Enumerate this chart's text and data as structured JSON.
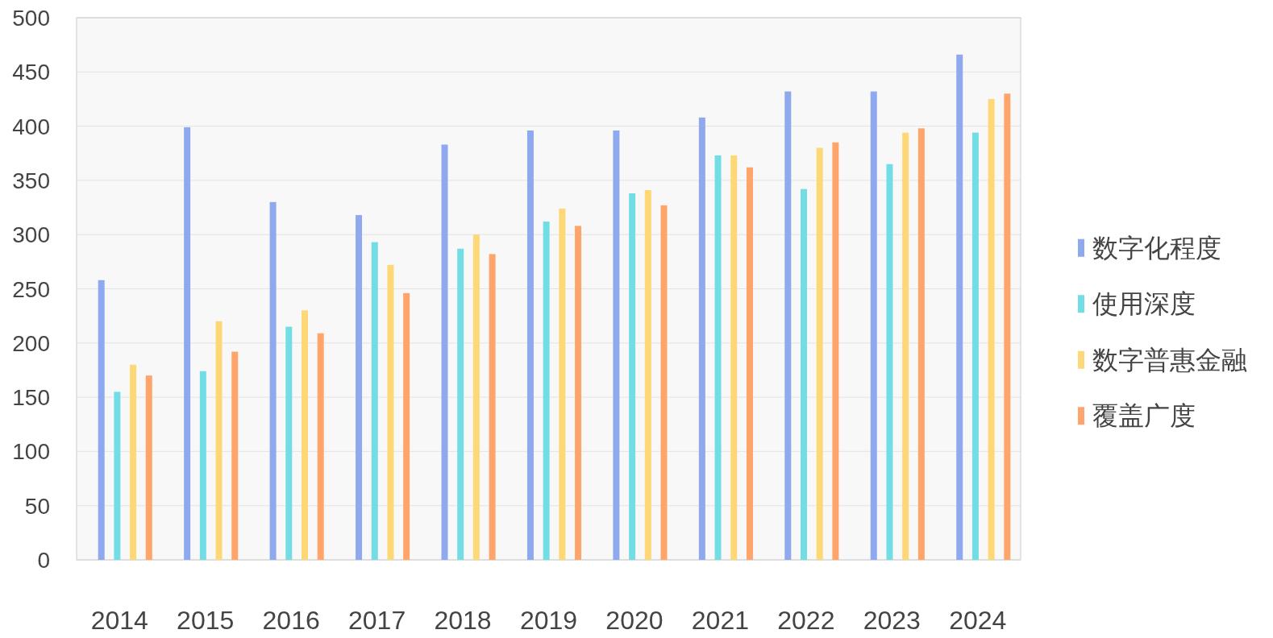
{
  "chart_data": {
    "type": "bar",
    "categories": [
      "2014",
      "2015",
      "2016",
      "2017",
      "2018",
      "2019",
      "2020",
      "2021",
      "2022",
      "2023",
      "2024"
    ],
    "series": [
      {
        "name": "数字化程度",
        "color": "#8fa9ef",
        "values": [
          258,
          399,
          330,
          318,
          383,
          396,
          396,
          408,
          432,
          432,
          466
        ]
      },
      {
        "name": "使用深度",
        "color": "#73dde6",
        "values": [
          155,
          174,
          215,
          293,
          287,
          312,
          338,
          373,
          342,
          365,
          394
        ]
      },
      {
        "name": "数字普惠金融",
        "color": "#fed876",
        "values": [
          180,
          220,
          230,
          272,
          300,
          324,
          341,
          373,
          380,
          394,
          425
        ]
      },
      {
        "name": "覆盖广度",
        "color": "#ffa56b",
        "values": [
          170,
          192,
          209,
          246,
          282,
          308,
          327,
          362,
          385,
          398,
          430
        ]
      }
    ],
    "ylim": [
      0,
      500
    ],
    "yticks": [
      0,
      50,
      100,
      150,
      200,
      250,
      300,
      350,
      400,
      450,
      500
    ],
    "grid": "y",
    "legend": "right"
  }
}
